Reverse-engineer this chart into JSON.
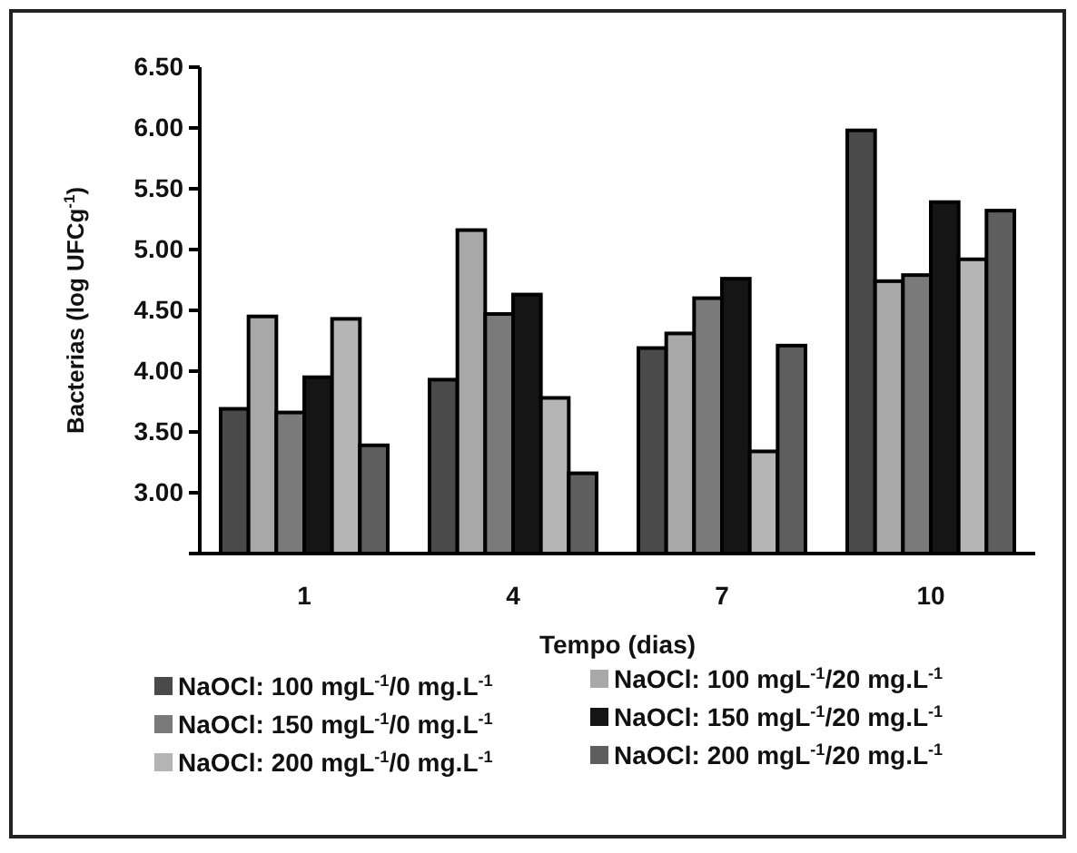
{
  "chart_data": {
    "type": "bar",
    "xlabel": "Tempo (dias)",
    "ylabel": "Bacterias (log UFCg$^{-1}$)",
    "categories": [
      "1",
      "4",
      "7",
      "10"
    ],
    "ylim": [
      2.5,
      6.5
    ],
    "yticks": [
      {
        "value": 2.5,
        "label": null
      },
      {
        "value": 3,
        "label": "3.00"
      },
      {
        "value": 3.5,
        "label": "3.50"
      },
      {
        "value": 4,
        "label": "4.00"
      },
      {
        "value": 4.5,
        "label": "4.50"
      },
      {
        "value": 5,
        "label": "5.00"
      },
      {
        "value": 5.5,
        "label": "5.50"
      },
      {
        "value": 6,
        "label": "6.00"
      },
      {
        "value": 6.5,
        "label": "6.50"
      }
    ],
    "legend": "bottom",
    "grid": false,
    "series": [
      {
        "name": "NaOCl: 100 mgL$^{-1}$/0 mg.L$^{-1}$",
        "color": "#4a4a4a",
        "values": [
          3.69,
          3.93,
          4.19,
          5.98
        ]
      },
      {
        "name": "NaOCl: 100 mgL$^{-1}$/20 mg.L$^{-1}$",
        "color": "#a8a8a8",
        "values": [
          4.45,
          5.16,
          4.31,
          4.74
        ]
      },
      {
        "name": "NaOCl: 150 mgL$^{-1}$/0 mg.L$^{-1}$",
        "color": "#7a7a7a",
        "values": [
          3.66,
          4.47,
          4.6,
          4.79
        ]
      },
      {
        "name": "NaOCl: 150 mgL$^{-1}$/20 mg.L$^{-1}$",
        "color": "#151515",
        "values": [
          3.95,
          4.63,
          4.76,
          5.39
        ]
      },
      {
        "name": "NaOCl: 200 mgL$^{-1}$/0 mg.L$^{-1}$",
        "color": "#b5b5b5",
        "values": [
          4.43,
          3.78,
          3.34,
          4.92
        ]
      },
      {
        "name": "NaOCl: 200 mgL$^{-1}$/20 mg.L$^{-1}$",
        "color": "#5e5e5e",
        "values": [
          3.39,
          3.16,
          4.21,
          5.32
        ]
      }
    ]
  }
}
